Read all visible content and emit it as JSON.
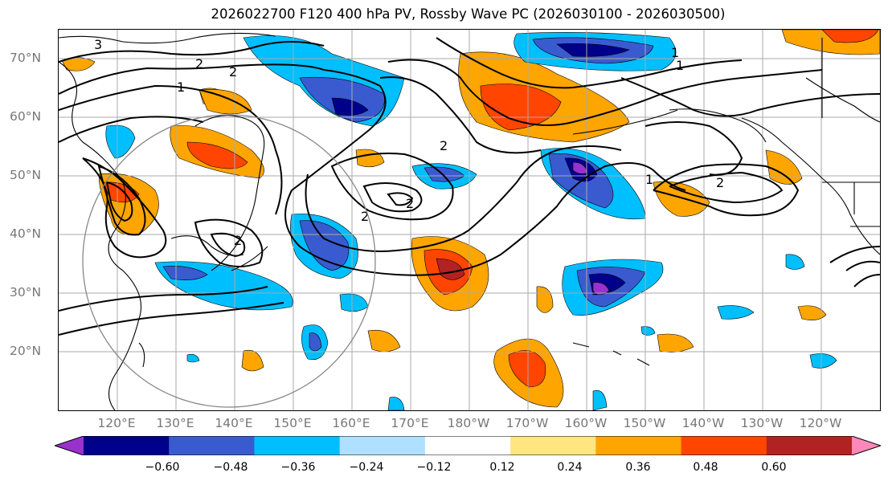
{
  "title": "2026022700 F120 400 hPa PV, Rossby Wave PC (2026030100 - 2026030500)",
  "lat_labels": [
    "70°N",
    "60°N",
    "50°N",
    "40°N",
    "30°N",
    "20°N"
  ],
  "lon_labels": [
    "120°E",
    "130°E",
    "140°E",
    "150°E",
    "160°E",
    "170°E",
    "180°W",
    "170°W",
    "160°W",
    "150°W",
    "140°W",
    "130°W",
    "120°W"
  ],
  "contour_labels": [
    "3",
    "2",
    "2",
    "1",
    "2",
    "2",
    "2",
    "1",
    "1",
    "1",
    "2",
    "2"
  ],
  "colorbar": {
    "ticks": [
      "−0.60",
      "−0.48",
      "−0.36",
      "−0.24",
      "−0.12",
      "0.12",
      "0.24",
      "0.36",
      "0.48",
      "0.60"
    ],
    "colors": [
      "#9932CC",
      "#00008B",
      "#3A5BD0",
      "#00BFFF",
      "#B0E0FF",
      "#FFFFFF",
      "#FFE680",
      "#FFA500",
      "#FF4500",
      "#B22222",
      "#FF88B8"
    ]
  }
}
